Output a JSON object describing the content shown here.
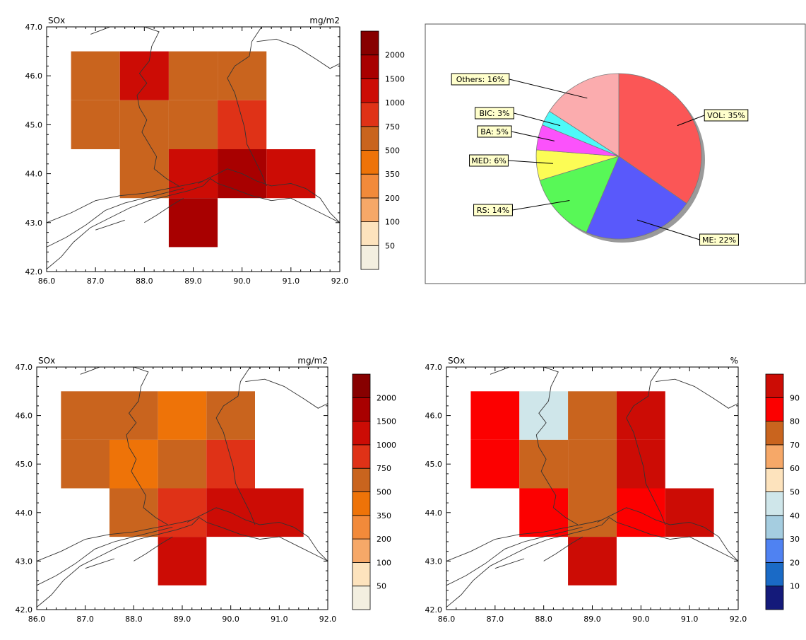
{
  "colors": {
    "conc_levels": [
      "#f3efe0",
      "#fde3bd",
      "#f6a868",
      "#f28a3a",
      "#ee7308",
      "#c9641e",
      "#df3217",
      "#cc0c05",
      "#a80000",
      "#870000"
    ],
    "pct_levels": [
      "#141a7a",
      "#1a6ac6",
      "#4f82f2",
      "#a5cde0",
      "#cfe6ea",
      "#fde3bd",
      "#f6a868",
      "#c9641e",
      "#fc0000",
      "#cc0c05"
    ],
    "coast": "#333333"
  },
  "chart_data": [
    {
      "type": "heatmap",
      "panel": "map_top_left",
      "title": "SOx",
      "unit": "mg/m2",
      "xlim": [
        86,
        92
      ],
      "ylim": [
        42,
        47
      ],
      "xticks": [
        "86.0",
        "87.0",
        "88.0",
        "89.0",
        "90.0",
        "91.0",
        "92.0"
      ],
      "yticks": [
        "42.0",
        "43.0",
        "44.0",
        "45.0",
        "46.0",
        "47.0"
      ],
      "colorbar_labels": [
        "50",
        "100",
        "200",
        "350",
        "500",
        "750",
        "1000",
        "1500",
        "2000"
      ],
      "cells": [
        {
          "lon": 87,
          "lat": 46,
          "level": 5
        },
        {
          "lon": 88,
          "lat": 46,
          "level": 7
        },
        {
          "lon": 89,
          "lat": 46,
          "level": 5
        },
        {
          "lon": 90,
          "lat": 46,
          "level": 5
        },
        {
          "lon": 87,
          "lat": 45,
          "level": 5
        },
        {
          "lon": 88,
          "lat": 45,
          "level": 5
        },
        {
          "lon": 89,
          "lat": 45,
          "level": 5
        },
        {
          "lon": 90,
          "lat": 45,
          "level": 6
        },
        {
          "lon": 88,
          "lat": 44,
          "level": 5
        },
        {
          "lon": 89,
          "lat": 44,
          "level": 7
        },
        {
          "lon": 90,
          "lat": 44,
          "level": 8
        },
        {
          "lon": 91,
          "lat": 44,
          "level": 7
        },
        {
          "lon": 89,
          "lat": 43,
          "level": 8
        }
      ]
    },
    {
      "type": "pie",
      "panel": "pie_top_right",
      "slices": [
        {
          "label": "VOL: 35%",
          "value": 35,
          "color": "#fb5656"
        },
        {
          "label": "ME: 22%",
          "value": 22,
          "color": "#5959fb"
        },
        {
          "label": "RS: 14%",
          "value": 14,
          "color": "#58f857"
        },
        {
          "label": "MED: 6%",
          "value": 6,
          "color": "#fcfc55"
        },
        {
          "label": "BA: 5%",
          "value": 5,
          "color": "#fb52fb"
        },
        {
          "label": "BIC: 3%",
          "value": 3,
          "color": "#4ef9f9"
        },
        {
          "label": "Others: 16%",
          "value": 16,
          "color": "#fbacae"
        }
      ]
    },
    {
      "type": "heatmap",
      "panel": "map_bottom_left",
      "title": "SOx",
      "unit": "mg/m2",
      "xlim": [
        86,
        92
      ],
      "ylim": [
        42,
        47
      ],
      "xticks": [
        "86.0",
        "87.0",
        "88.0",
        "89.0",
        "90.0",
        "91.0",
        "92.0"
      ],
      "yticks": [
        "42.0",
        "43.0",
        "44.0",
        "45.0",
        "46.0",
        "47.0"
      ],
      "colorbar_labels": [
        "50",
        "100",
        "200",
        "350",
        "500",
        "750",
        "1000",
        "1500",
        "2000"
      ],
      "cells": [
        {
          "lon": 87,
          "lat": 46,
          "level": 5
        },
        {
          "lon": 88,
          "lat": 46,
          "level": 5
        },
        {
          "lon": 89,
          "lat": 46,
          "level": 4
        },
        {
          "lon": 90,
          "lat": 46,
          "level": 5
        },
        {
          "lon": 87,
          "lat": 45,
          "level": 5
        },
        {
          "lon": 88,
          "lat": 45,
          "level": 4
        },
        {
          "lon": 89,
          "lat": 45,
          "level": 5
        },
        {
          "lon": 90,
          "lat": 45,
          "level": 6
        },
        {
          "lon": 88,
          "lat": 44,
          "level": 5
        },
        {
          "lon": 89,
          "lat": 44,
          "level": 6
        },
        {
          "lon": 90,
          "lat": 44,
          "level": 7
        },
        {
          "lon": 91,
          "lat": 44,
          "level": 7
        },
        {
          "lon": 89,
          "lat": 43,
          "level": 7
        }
      ]
    },
    {
      "type": "heatmap",
      "panel": "map_bottom_right",
      "title": "SOx",
      "unit": "%",
      "xlim": [
        86,
        92
      ],
      "ylim": [
        42,
        47
      ],
      "xticks": [
        "86.0",
        "87.0",
        "88.0",
        "89.0",
        "90.0",
        "91.0",
        "92.0"
      ],
      "yticks": [
        "42.0",
        "43.0",
        "44.0",
        "45.0",
        "46.0",
        "47.0"
      ],
      "colorbar_labels": [
        "10",
        "20",
        "30",
        "40",
        "50",
        "60",
        "70",
        "80",
        "90"
      ],
      "cells": [
        {
          "lon": 87,
          "lat": 46,
          "level": 8
        },
        {
          "lon": 88,
          "lat": 46,
          "level": 4
        },
        {
          "lon": 89,
          "lat": 46,
          "level": 7
        },
        {
          "lon": 90,
          "lat": 46,
          "level": 9
        },
        {
          "lon": 87,
          "lat": 45,
          "level": 8
        },
        {
          "lon": 88,
          "lat": 45,
          "level": 7
        },
        {
          "lon": 89,
          "lat": 45,
          "level": 7
        },
        {
          "lon": 90,
          "lat": 45,
          "level": 9
        },
        {
          "lon": 88,
          "lat": 44,
          "level": 8
        },
        {
          "lon": 89,
          "lat": 44,
          "level": 7
        },
        {
          "lon": 90,
          "lat": 44,
          "level": 8
        },
        {
          "lon": 91,
          "lat": 44,
          "level": 9
        },
        {
          "lon": 89,
          "lat": 43,
          "level": 9
        }
      ]
    }
  ]
}
